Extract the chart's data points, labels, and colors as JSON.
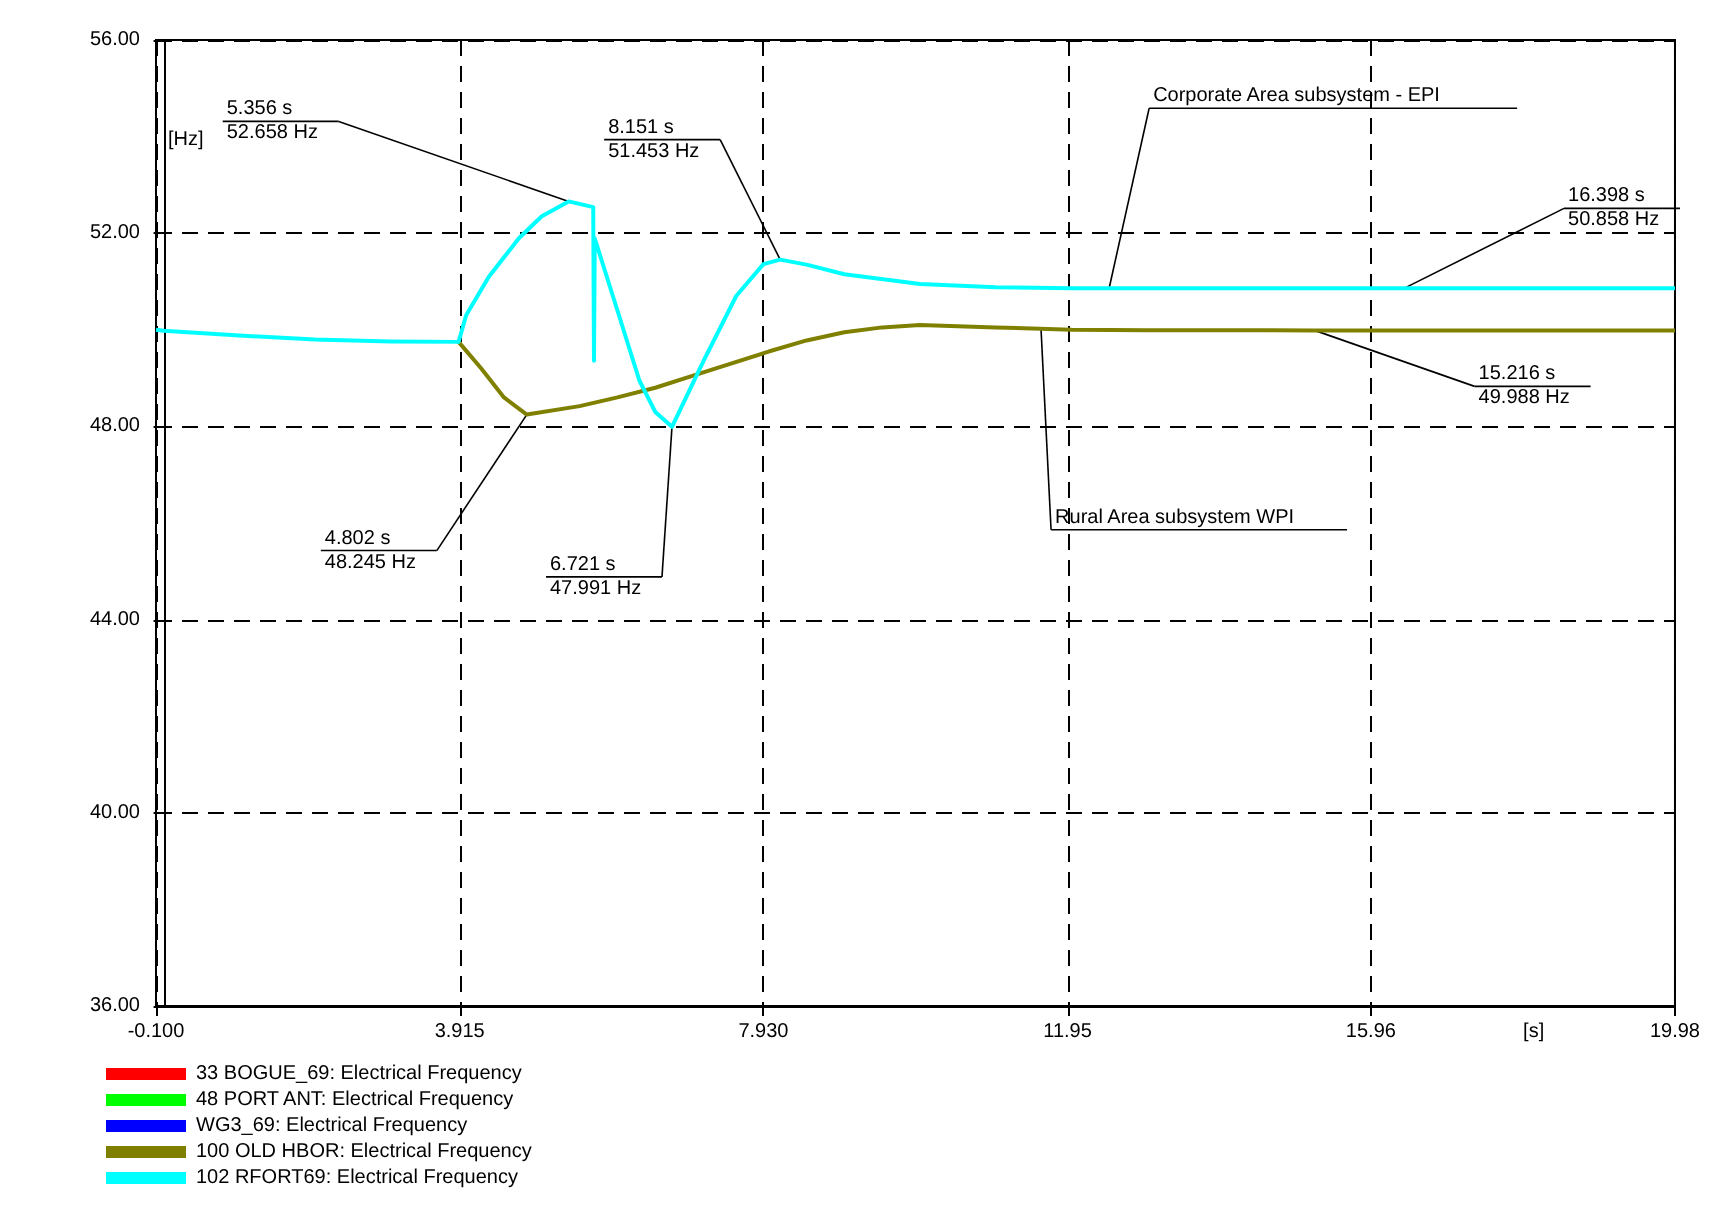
{
  "chart_data": {
    "type": "line",
    "xlabel": "[s]",
    "ylabel": "[Hz]",
    "xlim": [
      -0.1,
      19.98
    ],
    "xticks": [
      {
        "value": -0.1,
        "label": "-0.100"
      },
      3.915,
      {
        "value": 7.93,
        "label": "7.930"
      },
      11.95,
      15.96,
      19.98
    ],
    "ylim": [
      36,
      56
    ],
    "yticks": [
      {
        "value": 36,
        "label": "36.00"
      },
      {
        "value": 40,
        "label": "40.00"
      },
      {
        "value": 44,
        "label": "44.00"
      },
      {
        "value": 48,
        "label": "48.00"
      },
      {
        "value": 52,
        "label": "52.00"
      },
      {
        "value": 56,
        "label": "56.00"
      }
    ],
    "grid": true,
    "legend": "bottom",
    "line_style": "solid",
    "marker": "none",
    "series": [
      {
        "name": "33 BOGUE_69: Electrical Frequency",
        "color": "#ff0000"
      },
      {
        "name": "48 PORT ANT: Electrical Frequency",
        "color": "#00ff00"
      },
      {
        "name": "WG3_69: Electrical Frequency",
        "color": "#0000ff"
      },
      {
        "name": "100 OLD HBOR: Electrical Frequency",
        "color": "#808000",
        "x": [
          3.9,
          4.2,
          4.5,
          4.802,
          5.5,
          6,
          6.5,
          7,
          7.5,
          8,
          8.5,
          9,
          9.5,
          10,
          11,
          12,
          13,
          15.216,
          17,
          19.98
        ],
        "values": [
          49.75,
          49.2,
          48.6,
          48.245,
          48.42,
          48.6,
          48.8,
          49.05,
          49.3,
          49.55,
          49.78,
          49.95,
          50.05,
          50.1,
          50.05,
          50.0,
          49.99,
          49.988,
          49.988,
          49.988
        ]
      },
      {
        "name": "102 RFORT69: Electrical Frequency",
        "color": "#00ffff",
        "x": [
          -0.1,
          0,
          1,
          2,
          3,
          3.9,
          4.0,
          4.3,
          4.7,
          5.0,
          5.356,
          5.68,
          5.69,
          5.7,
          6.0,
          6.29,
          6.5,
          6.721,
          7.14,
          7.57,
          7.93,
          8.151,
          8.5,
          9,
          10,
          11,
          12,
          16.398,
          19.98
        ],
        "values": [
          50.0,
          49.98,
          49.88,
          49.8,
          49.76,
          49.75,
          50.3,
          51.1,
          51.9,
          52.35,
          52.658,
          52.54,
          49.36,
          51.89,
          50.4,
          48.95,
          48.3,
          47.991,
          49.36,
          50.7,
          51.36,
          51.453,
          51.35,
          51.15,
          50.95,
          50.88,
          50.86,
          50.858,
          50.858
        ]
      }
    ],
    "annotations": [
      {
        "text": "5.356 s\n52.658 Hz",
        "x": 5.356,
        "y": 52.658
      },
      {
        "text": "8.151 s\n51.453 Hz",
        "x": 8.151,
        "y": 51.453
      },
      {
        "text": "4.802 s\n48.245 Hz",
        "x": 4.802,
        "y": 48.245
      },
      {
        "text": "6.721 s\n47.991 Hz",
        "x": 6.721,
        "y": 47.991
      },
      {
        "text": "Corporate Area subsystem - EPI",
        "x": 12.5,
        "y": 50.86
      },
      {
        "text": "16.398 s\n50.858 Hz",
        "x": 16.398,
        "y": 50.858
      },
      {
        "text": "Rural Area subsystem WPI",
        "x": 11.6,
        "y": 50.0
      },
      {
        "text": "15.216 s\n49.988 Hz",
        "x": 15.216,
        "y": 49.988
      }
    ]
  }
}
